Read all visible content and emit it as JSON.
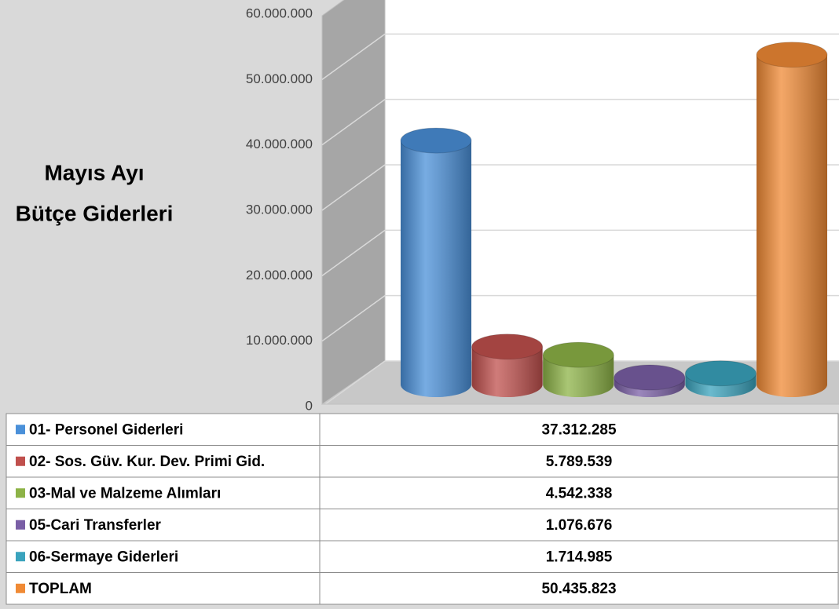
{
  "chart_data": {
    "type": "bar",
    "title": [
      "Mayıs Ayı",
      "Bütçe Giderleri"
    ],
    "categories": [
      "01- Personel Giderleri",
      "02- Sos. Güv. Kur. Dev. Primi Gid.",
      "03-Mal ve Malzeme Alımları",
      "05-Cari Transferler",
      "06-Sermaye Giderleri",
      "TOPLAM"
    ],
    "values": [
      37312285,
      5789539,
      4542338,
      1076676,
      1714985,
      50435823
    ],
    "value_labels": [
      "37.312.285",
      "5.789.539",
      "4.542.338",
      "1.076.676",
      "1.714.985",
      "50.435.823"
    ],
    "colors": [
      "#4a90d9",
      "#c0504d",
      "#8db347",
      "#7a5fa6",
      "#3aa3bd",
      "#f08a35"
    ],
    "ylim": [
      0,
      60000000
    ],
    "yticks": [
      {
        "value": 0,
        "label": "0"
      },
      {
        "value": 10000000,
        "label": "10.000.000"
      },
      {
        "value": 20000000,
        "label": "20.000.000"
      },
      {
        "value": 30000000,
        "label": "30.000.000"
      },
      {
        "value": 40000000,
        "label": "40.000.000"
      },
      {
        "value": 50000000,
        "label": "50.000.000"
      },
      {
        "value": 60000000,
        "label": "60.000.000"
      }
    ],
    "grid": true
  }
}
